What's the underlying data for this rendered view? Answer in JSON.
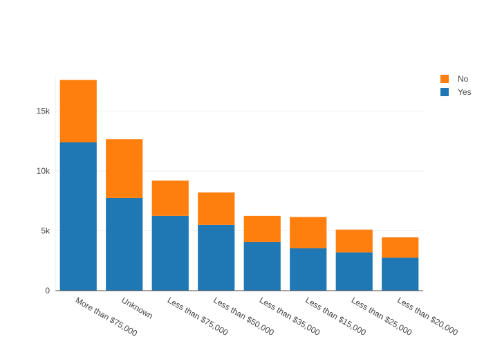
{
  "chart_data": {
    "type": "bar",
    "stacked": true,
    "title": "",
    "xlabel": "",
    "ylabel": "",
    "categories": [
      "More than $75,000",
      "Unknown",
      "Less than $75,000",
      "Less than $50,000",
      "Less than $35,000",
      "Less than $15,000",
      "Less than $25,000",
      "Less than $20,000"
    ],
    "series": [
      {
        "name": "Yes",
        "color": "#1f77b4",
        "values": [
          12400,
          7750,
          6250,
          5500,
          4050,
          3550,
          3200,
          2750
        ]
      },
      {
        "name": "No",
        "color": "#ff7f0e",
        "values": [
          5200,
          4900,
          2950,
          2700,
          2200,
          2600,
          1900,
          1700
        ]
      }
    ],
    "ylim": [
      0,
      18500
    ],
    "yticks": [
      0,
      5000,
      10000,
      15000
    ],
    "ytick_labels": [
      "0",
      "5k",
      "10k",
      "15k"
    ],
    "grid": true,
    "legend_position": "top-right",
    "legend": [
      {
        "label": "No",
        "color": "#ff7f0e"
      },
      {
        "label": "Yes",
        "color": "#1f77b4"
      }
    ]
  }
}
